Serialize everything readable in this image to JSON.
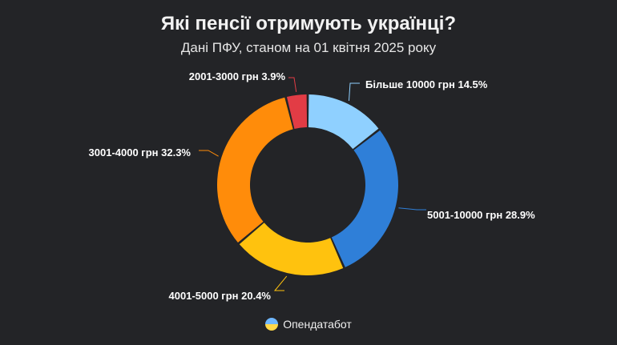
{
  "title": "Які пенсії отримують українці?",
  "subtitle": "Дані ПФУ, станом на 01 квітня 2025 року",
  "brand": {
    "name": "Опендатабот",
    "icon": "opendatabot-logo-icon"
  },
  "colors": {
    "background": "#232427"
  },
  "chart_data": {
    "type": "pie",
    "variant": "donut",
    "unit": "%",
    "slices": [
      {
        "label": "Більше 10000 грн 14.5%",
        "category": "Більше 10000 грн",
        "value": 14.5,
        "color": "#8fd0ff"
      },
      {
        "label": "5001-10000 грн 28.9%",
        "category": "5001-10000 грн",
        "value": 28.9,
        "color": "#2f7fd8"
      },
      {
        "label": "4001-5000 грн 20.4%",
        "category": "4001-5000 грн",
        "value": 20.4,
        "color": "#ffc20e"
      },
      {
        "label": "3001-4000 грн 32.3%",
        "category": "3001-4000 грн",
        "value": 32.3,
        "color": "#ff8c0a"
      },
      {
        "label": "2001-3000 грн 3.9%",
        "category": "2001-3000 грн",
        "value": 3.9,
        "color": "#e23c45"
      }
    ]
  }
}
